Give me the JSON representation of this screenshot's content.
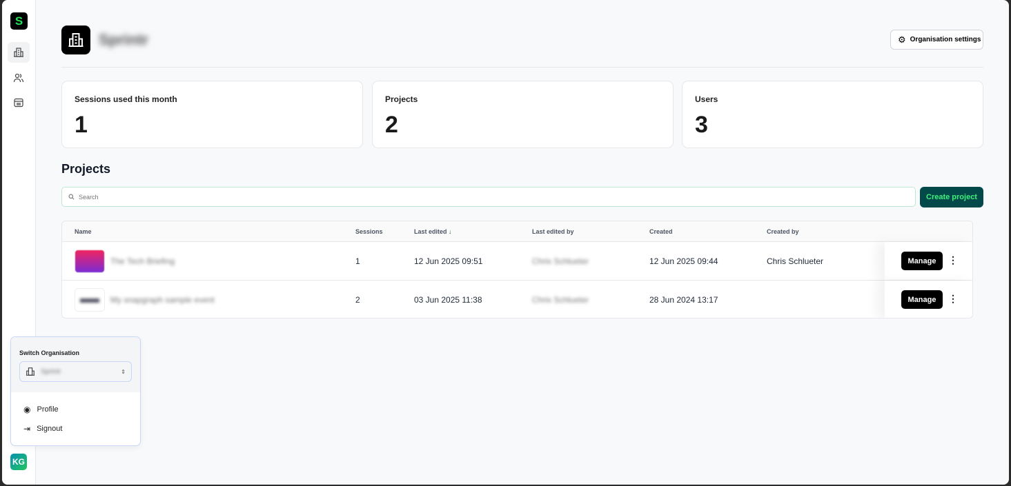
{
  "sidebar": {
    "logo_letter": "S",
    "nav": [
      "organisation-icon",
      "users-icon",
      "billing-icon"
    ],
    "avatar_initials": "KG"
  },
  "header": {
    "org_name": "Sprintr",
    "settings_label": "Organisation settings"
  },
  "stats": [
    {
      "label": "Sessions used this month",
      "value": "1"
    },
    {
      "label": "Projects",
      "value": "2"
    },
    {
      "label": "Users",
      "value": "3"
    }
  ],
  "projects": {
    "title": "Projects",
    "search_placeholder": "Search",
    "create_label": "Create project",
    "columns": [
      "Name",
      "Sessions",
      "Last edited ↓",
      "Last edited by",
      "Created",
      "Created by"
    ],
    "rows": [
      {
        "name": "The Tech Briefing",
        "sessions": "1",
        "last_edited": "12 Jun 2025 09:51",
        "last_edited_by": "Chris Schlueter",
        "created": "12 Jun 2025 09:44",
        "created_by": "Chris Schlueter",
        "action": "Manage"
      },
      {
        "name": "My snapgraph sample event",
        "sessions": "2",
        "last_edited": "03 Jun 2025 11:38",
        "last_edited_by": "Chris Schlueter",
        "created": "28 Jun 2024 13:17",
        "created_by": "",
        "action": "Manage"
      }
    ]
  },
  "menu": {
    "switch_label": "Switch Organisation",
    "selected_org": "Sprintr",
    "profile": "Profile",
    "signout": "Signout"
  },
  "colors": {
    "accent": "#03494a",
    "accent_text": "#3df07a"
  }
}
